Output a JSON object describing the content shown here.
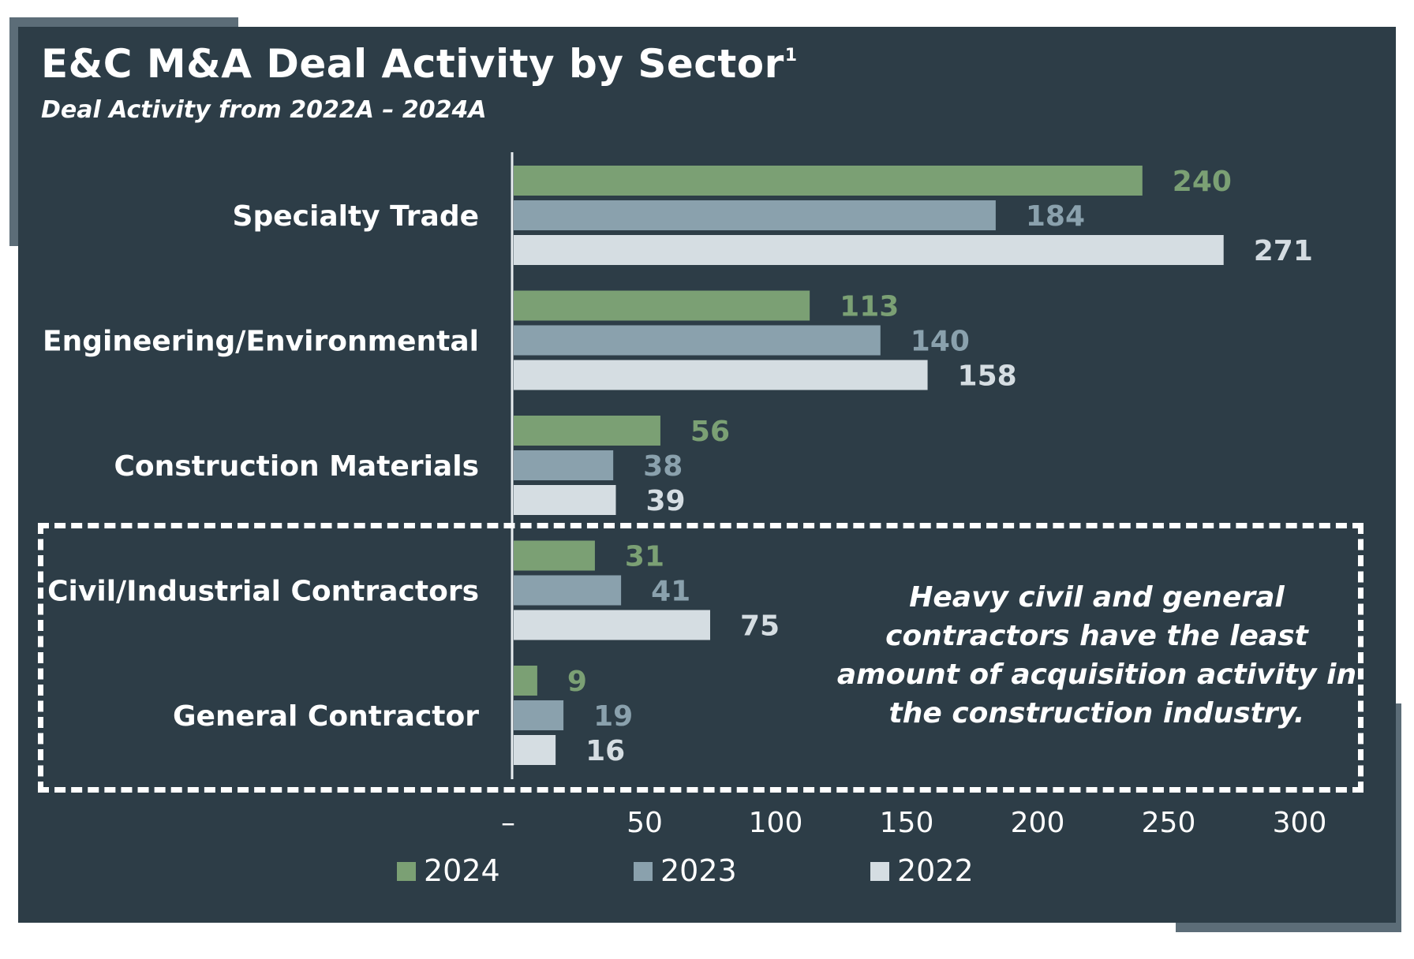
{
  "title": "E&C M&A Deal Activity by Sector",
  "title_superscript": "1",
  "subtitle": "Deal Activity from 2022A – 2024A",
  "callout": "Heavy civil and general contractors have the least amount of acquisition activity in the construction industry.",
  "colors": {
    "background": "#2d3d47",
    "accent_frame": "#5c6d78",
    "series_2024": "#7ba074",
    "series_2023": "#8aa1ad",
    "series_2022": "#d5dde2",
    "text": "#ffffff"
  },
  "chart_data": {
    "type": "bar",
    "orientation": "horizontal",
    "categories": [
      "Specialty Trade",
      "Engineering/Environmental",
      "Construction Materials",
      "Civil/Industrial Contractors",
      "General Contractor"
    ],
    "series": [
      {
        "name": "2024",
        "values": [
          240,
          113,
          56,
          31,
          9
        ]
      },
      {
        "name": "2023",
        "values": [
          184,
          140,
          38,
          41,
          19
        ]
      },
      {
        "name": "2022",
        "values": [
          271,
          158,
          39,
          75,
          16
        ]
      }
    ],
    "xlim": [
      0,
      300
    ],
    "x_ticks": [
      0,
      50,
      100,
      150,
      200,
      250,
      300
    ],
    "x_tick_labels": [
      "–",
      "50",
      "100",
      "150",
      "200",
      "250",
      "300"
    ],
    "data_labels": true,
    "grid": false,
    "legend_position": "bottom"
  }
}
